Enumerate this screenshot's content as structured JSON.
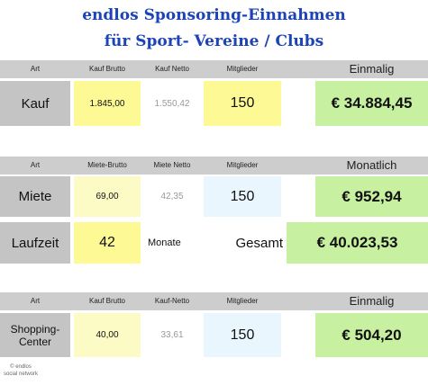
{
  "title": {
    "line1": "endlos Sponsoring-Einnahmen",
    "line2": "für Sport- Vereine / Clubs"
  },
  "kauf": {
    "headers": [
      "Art",
      "Kauf Brutto",
      "Kauf Netto",
      "Mitglieder",
      "Einmalig"
    ],
    "label": "Kauf",
    "brutto": "1.845,00",
    "netto": "1.550,42",
    "mitglieder": "150",
    "total": "€ 34.884,45"
  },
  "miete": {
    "headers": [
      "Art",
      "Miete-Brutto",
      "Miete Netto",
      "Mitglieder",
      "Monatlich"
    ],
    "label": "Miete",
    "brutto": "69,00",
    "netto": "42,35",
    "mitglieder": "150",
    "total": "€ 952,94"
  },
  "laufzeit": {
    "label": "Laufzeit",
    "value": "42",
    "unit": "Monate",
    "gesamt_label": "Gesamt",
    "gesamt": "€ 40.023,53"
  },
  "shopping": {
    "headers": [
      "Art",
      "Kauf Brutto",
      "Kauf-Netto",
      "Mitglieder",
      "Einmalig"
    ],
    "label": "Shopping-\nCenter",
    "brutto": "40,00",
    "netto": "33,61",
    "mitglieder": "150",
    "total": "€ 504,20"
  },
  "footer": "© endlos social network"
}
